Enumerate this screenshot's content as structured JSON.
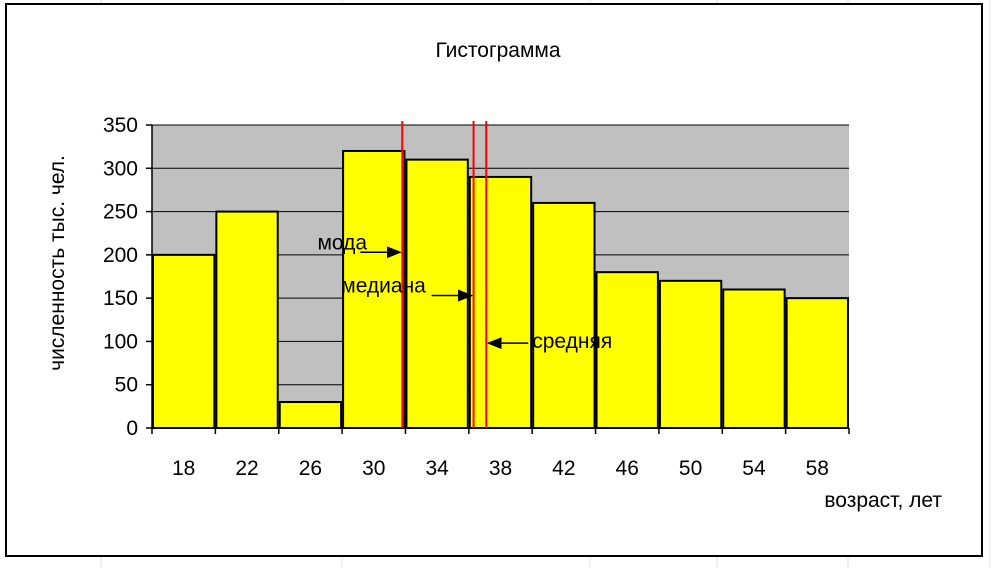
{
  "chart_data": {
    "type": "bar",
    "title": "Гистограмма",
    "xlabel": "возраст, лет",
    "ylabel": "численность тыс. чел.",
    "categories": [
      "18",
      "22",
      "26",
      "30",
      "34",
      "38",
      "42",
      "46",
      "50",
      "54",
      "58"
    ],
    "values": [
      200,
      250,
      30,
      320,
      310,
      290,
      260,
      180,
      170,
      160,
      150
    ],
    "ylim": [
      0,
      350
    ],
    "yticks": [
      0,
      50,
      100,
      150,
      200,
      250,
      300,
      350
    ],
    "grid": true,
    "bar_color": "#ffff00",
    "plot_background": "#c0c0c0",
    "marker_color": "#ff0000",
    "annotations": [
      {
        "label": "мода",
        "position": 31.8,
        "arrow_y": 203
      },
      {
        "label": "медиана",
        "position": 36.3,
        "arrow_y": 153
      },
      {
        "label": "средняя",
        "position": 37.1,
        "arrow_y": 98
      }
    ]
  }
}
